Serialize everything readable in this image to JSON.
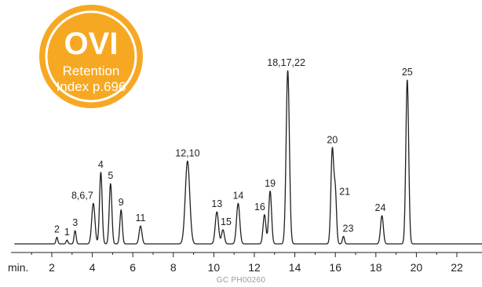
{
  "badge": {
    "title": "OVI",
    "line1": "Retention",
    "line2": "Index p.696",
    "color": "#f7a823"
  },
  "caption": "GC  PH00260",
  "chart_data": {
    "type": "line",
    "title": "",
    "xlabel": "min.",
    "ylabel": "",
    "xlim": [
      0,
      23.3
    ],
    "ylim": [
      0,
      100
    ],
    "x_ticks": [
      2,
      4,
      6,
      8,
      10,
      12,
      14,
      16,
      18,
      20,
      22
    ],
    "x_minor_step": 1,
    "grid": false,
    "line_color": "#231f20",
    "peaks": [
      {
        "label": "2",
        "rt": 2.25,
        "height": 3.5,
        "width": 0.045
      },
      {
        "label": "1",
        "rt": 2.75,
        "height": 2.0,
        "width": 0.045
      },
      {
        "label": "3",
        "rt": 3.15,
        "height": 7.0,
        "width": 0.05
      },
      {
        "label": "8,6,7",
        "rt": 4.05,
        "height": 21.5,
        "width": 0.08
      },
      {
        "label": "4",
        "rt": 4.42,
        "height": 38.0,
        "width": 0.065
      },
      {
        "label": "5",
        "rt": 4.9,
        "height": 32.0,
        "width": 0.065
      },
      {
        "label": "9",
        "rt": 5.42,
        "height": 18.0,
        "width": 0.06
      },
      {
        "label": "11",
        "rt": 6.38,
        "height": 9.5,
        "width": 0.07
      },
      {
        "label": "12,10",
        "rt": 8.7,
        "height": 44.0,
        "width": 0.11
      },
      {
        "label": "13",
        "rt": 10.15,
        "height": 17.0,
        "width": 0.08
      },
      {
        "label": "15",
        "rt": 10.45,
        "height": 7.5,
        "width": 0.07
      },
      {
        "label": "14",
        "rt": 11.2,
        "height": 21.5,
        "width": 0.08
      },
      {
        "label": "16",
        "rt": 12.5,
        "height": 15.5,
        "width": 0.07
      },
      {
        "label": "19",
        "rt": 12.78,
        "height": 28.0,
        "width": 0.07
      },
      {
        "label": "18,17,22",
        "rt": 13.65,
        "height": 92.0,
        "width": 0.08
      },
      {
        "label": "20",
        "rt": 15.85,
        "height": 50.0,
        "width": 0.07
      },
      {
        "label": "21",
        "rt": 16.0,
        "height": 26.0,
        "width": 0.06
      },
      {
        "label": "23",
        "rt": 16.4,
        "height": 4.0,
        "width": 0.05
      },
      {
        "label": "24",
        "rt": 18.3,
        "height": 15.0,
        "width": 0.07
      },
      {
        "label": "25",
        "rt": 19.55,
        "height": 87.0,
        "width": 0.07
      }
    ]
  }
}
